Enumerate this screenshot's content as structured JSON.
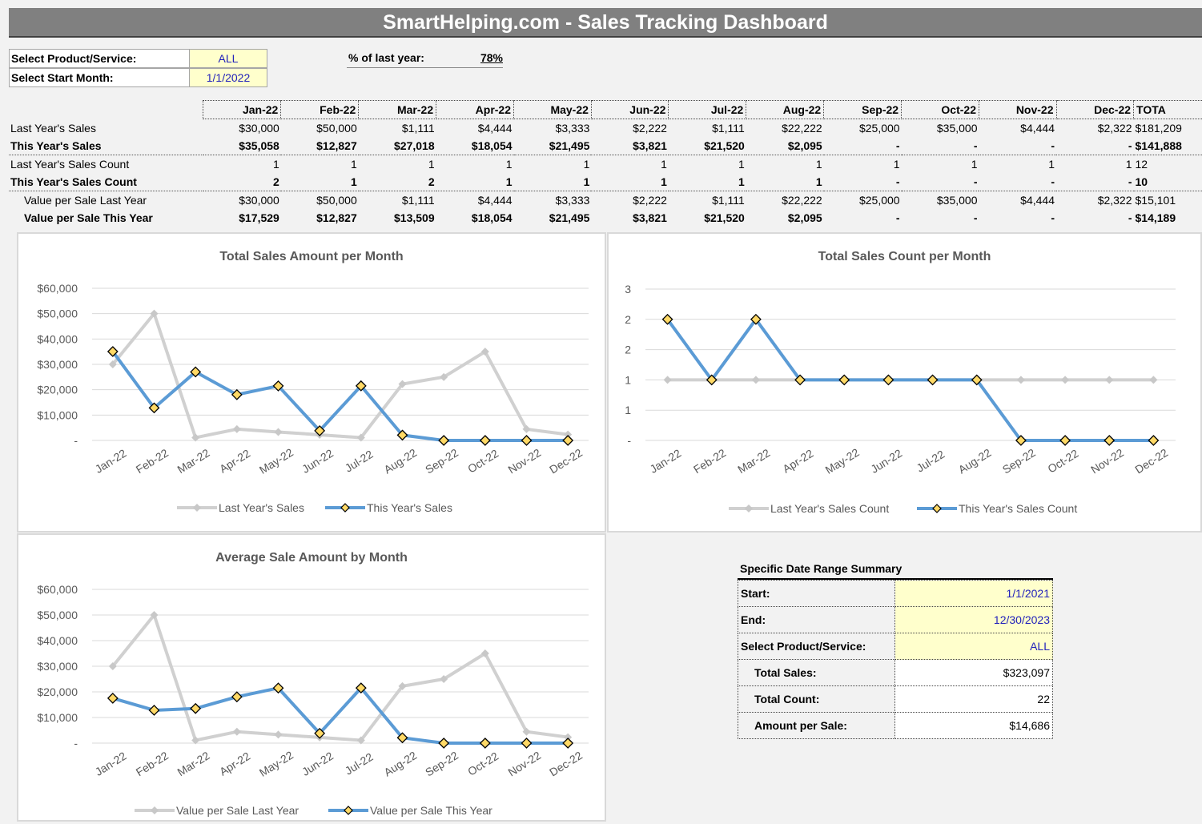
{
  "header": {
    "title": "SmartHelping.com - Sales Tracking Dashboard"
  },
  "filters": {
    "product_label": "Select Product/Service:",
    "product_value": "ALL",
    "start_label": "Select Start Month:",
    "start_value": "1/1/2022",
    "pct_label": "% of last year:",
    "pct_value": "78%"
  },
  "months": [
    "Jan-22",
    "Feb-22",
    "Mar-22",
    "Apr-22",
    "May-22",
    "Jun-22",
    "Jul-22",
    "Aug-22",
    "Sep-22",
    "Oct-22",
    "Nov-22",
    "Dec-22"
  ],
  "total_header": "TOTA",
  "rows": [
    {
      "label": "Last Year's Sales",
      "values": [
        "$30,000",
        "$50,000",
        "$1,111",
        "$4,444",
        "$3,333",
        "$2,222",
        "$1,111",
        "$22,222",
        "$25,000",
        "$35,000",
        "$4,444",
        "$2,322"
      ],
      "total": "$181,209",
      "bold": false,
      "indent": false,
      "sep": false
    },
    {
      "label": "This Year's Sales",
      "values": [
        "$35,058",
        "$12,827",
        "$27,018",
        "$18,054",
        "$21,495",
        "$3,821",
        "$21,520",
        "$2,095",
        "-",
        "-",
        "-",
        "-"
      ],
      "total": "$141,888",
      "bold": true,
      "indent": false,
      "sep": true
    },
    {
      "label": "Last Year's Sales Count",
      "values": [
        "1",
        "1",
        "1",
        "1",
        "1",
        "1",
        "1",
        "1",
        "1",
        "1",
        "1",
        "1"
      ],
      "total": "12",
      "bold": false,
      "indent": false,
      "sep": false
    },
    {
      "label": "This Year's Sales Count",
      "values": [
        "2",
        "1",
        "2",
        "1",
        "1",
        "1",
        "1",
        "1",
        "-",
        "-",
        "-",
        "-"
      ],
      "total": "10",
      "bold": true,
      "indent": false,
      "sep": true
    },
    {
      "label": "Value per Sale Last Year",
      "values": [
        "$30,000",
        "$50,000",
        "$1,111",
        "$4,444",
        "$3,333",
        "$2,222",
        "$1,111",
        "$22,222",
        "$25,000",
        "$35,000",
        "$4,444",
        "$2,322"
      ],
      "total": "$15,101",
      "bold": false,
      "indent": true,
      "sep": false
    },
    {
      "label": "Value per Sale This Year",
      "values": [
        "$17,529",
        "$12,827",
        "$13,509",
        "$18,054",
        "$21,495",
        "$3,821",
        "$21,520",
        "$2,095",
        "-",
        "-",
        "-",
        "-"
      ],
      "total": "$14,189",
      "bold": true,
      "indent": true,
      "sep": false
    }
  ],
  "chart_data": [
    {
      "type": "line",
      "title": "Total Sales Amount per Month",
      "categories": [
        "Jan-22",
        "Feb-22",
        "Mar-22",
        "Apr-22",
        "May-22",
        "Jun-22",
        "Jul-22",
        "Aug-22",
        "Sep-22",
        "Oct-22",
        "Nov-22",
        "Dec-22"
      ],
      "y_ticks": [
        "-",
        "$10,000",
        "$20,000",
        "$30,000",
        "$40,000",
        "$50,000",
        "$60,000"
      ],
      "ylim": [
        0,
        60000
      ],
      "legend_position": "bottom",
      "series": [
        {
          "name": "Last Year's Sales",
          "color": "#d0d0d0",
          "values": [
            30000,
            50000,
            1111,
            4444,
            3333,
            2222,
            1111,
            22222,
            25000,
            35000,
            4444,
            2322
          ]
        },
        {
          "name": "This Year's Sales",
          "color": "#5b9bd5",
          "values": [
            35058,
            12827,
            27018,
            18054,
            21495,
            3821,
            21520,
            2095,
            0,
            0,
            0,
            0
          ]
        }
      ]
    },
    {
      "type": "line",
      "title": "Total Sales Count per Month",
      "categories": [
        "Jan-22",
        "Feb-22",
        "Mar-22",
        "Apr-22",
        "May-22",
        "Jun-22",
        "Jul-22",
        "Aug-22",
        "Sep-22",
        "Oct-22",
        "Nov-22",
        "Dec-22"
      ],
      "y_ticks": [
        "-",
        "1",
        "1",
        "2",
        "2",
        "3"
      ],
      "ylim": [
        0,
        2.5
      ],
      "legend_position": "bottom",
      "series": [
        {
          "name": "Last Year's Sales Count",
          "color": "#d0d0d0",
          "values": [
            1,
            1,
            1,
            1,
            1,
            1,
            1,
            1,
            1,
            1,
            1,
            1
          ]
        },
        {
          "name": "This Year's Sales Count",
          "color": "#5b9bd5",
          "values": [
            2,
            1,
            2,
            1,
            1,
            1,
            1,
            1,
            0,
            0,
            0,
            0
          ]
        }
      ]
    },
    {
      "type": "line",
      "title": "Average Sale Amount by Month",
      "categories": [
        "Jan-22",
        "Feb-22",
        "Mar-22",
        "Apr-22",
        "May-22",
        "Jun-22",
        "Jul-22",
        "Aug-22",
        "Sep-22",
        "Oct-22",
        "Nov-22",
        "Dec-22"
      ],
      "y_ticks": [
        "-",
        "$10,000",
        "$20,000",
        "$30,000",
        "$40,000",
        "$50,000",
        "$60,000"
      ],
      "ylim": [
        0,
        60000
      ],
      "legend_position": "bottom",
      "series": [
        {
          "name": "Value per Sale Last Year",
          "color": "#d0d0d0",
          "values": [
            30000,
            50000,
            1111,
            4444,
            3333,
            2222,
            1111,
            22222,
            25000,
            35000,
            4444,
            2322
          ]
        },
        {
          "name": "Value per Sale This Year",
          "color": "#5b9bd5",
          "values": [
            17529,
            12827,
            13509,
            18054,
            21495,
            3821,
            21520,
            2095,
            0,
            0,
            0,
            0
          ]
        }
      ]
    }
  ],
  "summary": {
    "title": "Specific Date Range Summary",
    "rows": [
      {
        "label": "Start:",
        "value": "1/1/2021",
        "input": true
      },
      {
        "label": "End:",
        "value": "12/30/2023",
        "input": true
      },
      {
        "label": "Select Product/Service:",
        "value": "ALL",
        "input": true
      },
      {
        "label": "Total Sales:",
        "value": "$323,097",
        "input": false
      },
      {
        "label": "Total Count:",
        "value": "22",
        "input": false
      },
      {
        "label": "Amount per Sale:",
        "value": "$14,686",
        "input": false
      }
    ]
  }
}
